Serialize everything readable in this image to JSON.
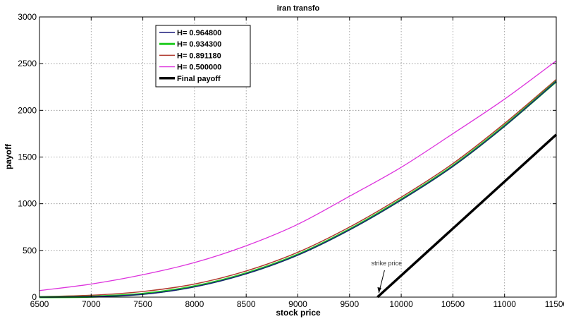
{
  "chart_data": {
    "type": "line",
    "title": "iran transfo",
    "xlabel": "stock price",
    "ylabel": "payoff",
    "xlim": [
      6500,
      11500
    ],
    "ylim": [
      0,
      3000
    ],
    "xticks": [
      6500,
      7000,
      7500,
      8000,
      8500,
      9000,
      9500,
      10000,
      10500,
      11000,
      11500
    ],
    "yticks": [
      0,
      500,
      1000,
      1500,
      2000,
      2500,
      3000
    ],
    "grid": true,
    "legend_position": "top-left",
    "series": [
      {
        "name": "H= 0.964800",
        "color": "#1a1a7a",
        "x": [
          6500,
          7000,
          7500,
          8000,
          8500,
          9000,
          9500,
          10000,
          10500,
          11000,
          11500
        ],
        "values": [
          0,
          5,
          30,
          110,
          250,
          450,
          720,
          1040,
          1400,
          1830,
          2310
        ]
      },
      {
        "name": "H= 0.934300",
        "color": "#22cc22",
        "x": [
          6500,
          7000,
          7500,
          8000,
          8500,
          9000,
          9500,
          10000,
          10500,
          11000,
          11500
        ],
        "values": [
          0,
          5,
          35,
          115,
          255,
          455,
          725,
          1045,
          1405,
          1835,
          2310
        ]
      },
      {
        "name": "H= 0.891180",
        "color": "#b03a2e",
        "x": [
          6500,
          7000,
          7500,
          8000,
          8500,
          9000,
          9500,
          10000,
          10500,
          11000,
          11500
        ],
        "values": [
          5,
          20,
          60,
          140,
          280,
          480,
          750,
          1070,
          1430,
          1860,
          2330
        ]
      },
      {
        "name": "H= 0.500000",
        "color": "#dd33dd",
        "x": [
          6500,
          7000,
          7500,
          8000,
          8500,
          9000,
          9500,
          10000,
          10500,
          11000,
          11500
        ],
        "values": [
          70,
          140,
          240,
          370,
          550,
          780,
          1080,
          1390,
          1750,
          2120,
          2530
        ]
      },
      {
        "name": "Final payoff",
        "color": "#000000",
        "x": [
          9770,
          11500
        ],
        "values": [
          0,
          1740
        ]
      }
    ],
    "annotations": [
      {
        "text": "strike price",
        "x": 9770,
        "y": 0
      }
    ]
  }
}
